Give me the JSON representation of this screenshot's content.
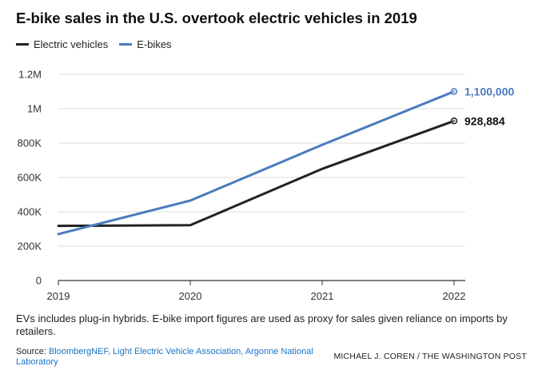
{
  "header": {
    "title": "E-bike sales in the U.S. overtook electric vehicles in 2019"
  },
  "colors": {
    "ev": "#222222",
    "ebike": "#4a7bbd",
    "grid": "#dddddd",
    "axis": "#333333"
  },
  "chart_data": {
    "type": "line",
    "x": [
      2019,
      2020,
      2021,
      2022
    ],
    "xlim": [
      2019,
      2022
    ],
    "ylim": [
      0,
      1200000
    ],
    "yticks": [
      0,
      200000,
      400000,
      600000,
      800000,
      1000000,
      1200000
    ],
    "ytick_labels": [
      "0",
      "200K",
      "400K",
      "600K",
      "800K",
      "1M",
      "1.2M"
    ],
    "xtick_labels": [
      "2019",
      "2020",
      "2021",
      "2022"
    ],
    "grid": true,
    "legend_position": "top-left",
    "series": [
      {
        "name": "Electric vehicles",
        "key": "ev",
        "values": [
          318000,
          322000,
          650000,
          928884
        ],
        "end_label": "928,884"
      },
      {
        "name": "E-bikes",
        "key": "ebike",
        "values": [
          270000,
          465000,
          790000,
          1100000
        ],
        "end_label": "1,100,000"
      }
    ]
  },
  "footer": {
    "note": "EVs includes plug-in hybrids. E-bike import figures are used as proxy for sales given reliance on imports by retailers.",
    "source_prefix": "Source: ",
    "source_links": "BloombergNEF, Light Electric Vehicle Association, Argonne National Laboratory",
    "credit": "MICHAEL J. COREN / THE WASHINGTON POST"
  }
}
